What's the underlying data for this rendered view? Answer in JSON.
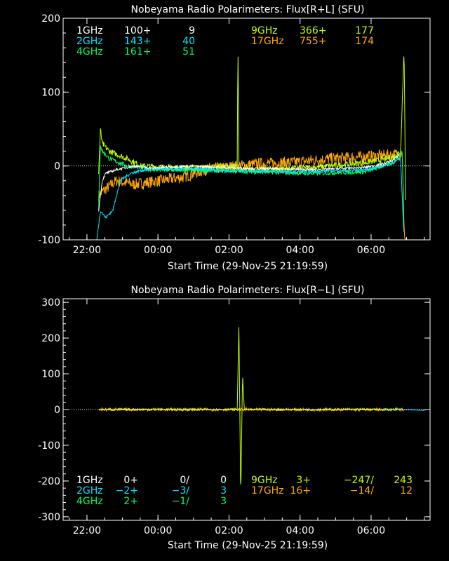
{
  "colors": {
    "background": "#000000",
    "axes": "#ffffff",
    "f1GHz": "#ffffff",
    "f2GHz": "#00e5ff",
    "f4GHz": "#00ff66",
    "f9GHz": "#bfff00",
    "f17GHz": "#ffa800"
  },
  "chart_data": [
    {
      "type": "line",
      "title": "Nobeyama Radio Polarimeters: Flux[R+L] (SFU)",
      "xlabel": "Start Time (29-Nov-25 21:19:59)",
      "x_unit": "hours after 29-Nov-25 21:19:59",
      "xlim": [
        0,
        10.33
      ],
      "ylim": [
        -100,
        200
      ],
      "yticks": [
        "200",
        "100",
        "0",
        "-100"
      ],
      "ytick_values": [
        200,
        100,
        0,
        -100
      ],
      "xticks": [
        "22:00",
        "00:00",
        "02:00",
        "04:00",
        "06:00"
      ],
      "xtick_values": [
        0.67,
        2.67,
        4.67,
        6.67,
        8.67
      ],
      "legend": [
        {
          "freq": "1GHz",
          "base": "100+",
          "value": "9",
          "color": "f1GHz"
        },
        {
          "freq": "2GHz",
          "base": "143+",
          "value": "40",
          "color": "f2GHz"
        },
        {
          "freq": "4GHz",
          "base": "161+",
          "value": "51",
          "color": "f4GHz"
        },
        {
          "freq": "9GHz",
          "base": "366+",
          "value": "177",
          "color": "f9GHz"
        },
        {
          "freq": "17GHz",
          "base": "755+",
          "value": "174",
          "color": "f17GHz"
        }
      ],
      "series": [
        {
          "name": "17GHz",
          "color": "f17GHz",
          "noise": 8,
          "x": [
            1.0,
            1.1,
            1.5,
            2.0,
            2.7,
            3.4,
            4.0,
            4.9,
            5.5,
            6.5,
            7.5,
            8.3,
            9.3,
            9.55,
            9.6,
            9.65
          ],
          "y": [
            -40,
            -35,
            -20,
            -25,
            -20,
            -15,
            -5,
            0,
            3,
            5,
            10,
            12,
            15,
            18,
            -90,
            -100
          ]
        },
        {
          "name": "9GHz",
          "color": "f9GHz",
          "noise": 4,
          "x": [
            1.0,
            1.05,
            1.1,
            1.3,
            1.8,
            2.2,
            3.5,
            4.9,
            4.92,
            4.95,
            5.5,
            7.0,
            8.6,
            9.3,
            9.5,
            9.6,
            9.65
          ],
          "y": [
            -10,
            50,
            30,
            20,
            10,
            0,
            -3,
            0,
            170,
            -5,
            -5,
            -2,
            5,
            12,
            20,
            160,
            -100
          ]
        },
        {
          "name": "4GHz",
          "color": "f4GHz",
          "noise": 3,
          "x": [
            1.0,
            1.05,
            1.1,
            1.3,
            1.8,
            2.5,
            4.9,
            5.5,
            7.0,
            8.5,
            9.3,
            9.55,
            9.6
          ],
          "y": [
            -60,
            30,
            20,
            10,
            0,
            -5,
            -7,
            -8,
            -10,
            -8,
            5,
            20,
            -100
          ]
        },
        {
          "name": "2GHz",
          "color": "f2GHz",
          "noise": 2,
          "x": [
            0.95,
            1.05,
            1.2,
            1.4,
            1.6,
            1.9,
            2.3,
            4.0,
            6.5,
            8.6,
            9.3,
            9.5,
            9.6
          ],
          "y": [
            -100,
            -60,
            -70,
            -60,
            -20,
            -10,
            -5,
            -5,
            -8,
            -5,
            5,
            10,
            -100
          ]
        },
        {
          "name": "1GHz",
          "color": "f1GHz",
          "noise": 1.5,
          "x": [
            1.0,
            1.1,
            1.2,
            1.5,
            2.0,
            2.5,
            3.5,
            5.0,
            7.0,
            8.5,
            9.0,
            9.3,
            9.45
          ],
          "y": [
            -60,
            -20,
            -10,
            -5,
            0,
            -3,
            0,
            -3,
            -5,
            -2,
            3,
            8,
            15
          ]
        }
      ]
    },
    {
      "type": "line",
      "title": "Nobeyama Radio Polarimeters: Flux[R−L] (SFU)",
      "xlabel": "Start Time (29-Nov-25 21:19:59)",
      "x_unit": "hours after 29-Nov-25 21:19:59",
      "xlim": [
        0,
        10.33
      ],
      "ylim": [
        -310,
        310
      ],
      "yticks": [
        "300",
        "200",
        "100",
        "0",
        "-100",
        "-200",
        "-300"
      ],
      "ytick_values": [
        300,
        200,
        100,
        0,
        -100,
        -200,
        -300
      ],
      "xticks": [
        "22:00",
        "00:00",
        "02:00",
        "04:00",
        "06:00"
      ],
      "xtick_values": [
        0.67,
        2.67,
        4.67,
        6.67,
        8.67
      ],
      "legend": [
        {
          "freq": "1GHz",
          "base": "0+",
          "ratio": "0/",
          "value": "0",
          "color": "f1GHz"
        },
        {
          "freq": "2GHz",
          "base": "−2+",
          "ratio": "−3/",
          "value": "3",
          "color": "f2GHz"
        },
        {
          "freq": "4GHz",
          "base": "2+",
          "ratio": "−1/",
          "value": "3",
          "color": "f4GHz"
        },
        {
          "freq": "9GHz",
          "base": "3+",
          "ratio": "−247/",
          "value": "243",
          "color": "f9GHz"
        },
        {
          "freq": "17GHz",
          "base": "16+",
          "ratio": "−14/",
          "value": "12",
          "color": "f17GHz"
        }
      ],
      "series": [
        {
          "name": "17GHz",
          "color": "f17GHz",
          "noise": 4,
          "x": [
            1.0,
            3.0,
            5.0,
            7.0,
            9.0,
            9.6
          ],
          "y": [
            0,
            0,
            0,
            0,
            0,
            0
          ]
        },
        {
          "name": "9GHz",
          "color": "f9GHz",
          "noise": 2,
          "x": [
            1.0,
            4.9,
            4.95,
            5.0,
            5.05,
            5.1,
            7.0,
            9.5
          ],
          "y": [
            0,
            0,
            240,
            -250,
            100,
            0,
            0,
            0
          ]
        },
        {
          "name": "2GHz",
          "color": "f2GHz",
          "noise": 1,
          "x": [
            9.0,
            9.5,
            10.2
          ],
          "y": [
            0,
            0,
            -2
          ]
        }
      ]
    }
  ]
}
